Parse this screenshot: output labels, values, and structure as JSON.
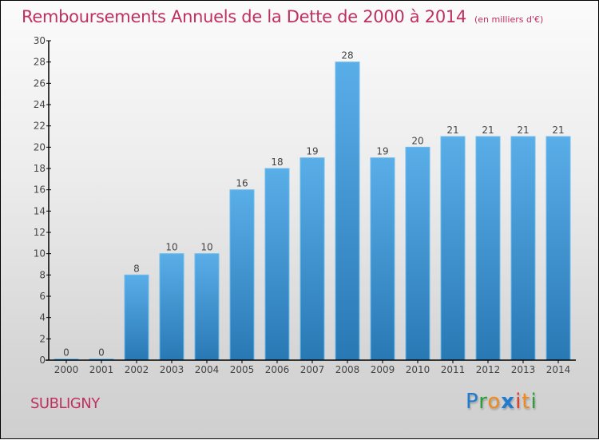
{
  "header": {
    "title": "Remboursements Annuels de la Dette de 2000 à 2014",
    "unit": "(en milliers d'€)"
  },
  "footer": {
    "commune": "SUBLIGNY",
    "logo": {
      "p": "P",
      "r": "r",
      "o": "o",
      "x": "x",
      "i1": "i",
      "t": "t",
      "i2": "i"
    }
  },
  "colors": {
    "title": "#c0305f",
    "bar_top": "#5aaee8",
    "bar_bottom": "#2878b4"
  },
  "chart_data": {
    "type": "bar",
    "title": "Remboursements Annuels de la Dette de 2000 à 2014",
    "subtitle": "(en milliers d'€)",
    "xlabel": "",
    "ylabel": "",
    "categories": [
      "2000",
      "2001",
      "2002",
      "2003",
      "2004",
      "2005",
      "2006",
      "2007",
      "2008",
      "2009",
      "2010",
      "2011",
      "2012",
      "2013",
      "2014"
    ],
    "values": [
      0,
      0,
      8,
      10,
      10,
      16,
      18,
      19,
      28,
      19,
      20,
      21,
      21,
      21,
      21
    ],
    "ylim": [
      0,
      30
    ],
    "yticks": [
      0,
      2,
      4,
      6,
      8,
      10,
      12,
      14,
      16,
      18,
      20,
      22,
      24,
      26,
      28,
      30
    ],
    "grid": false,
    "legend": "none",
    "data_labels": true
  }
}
